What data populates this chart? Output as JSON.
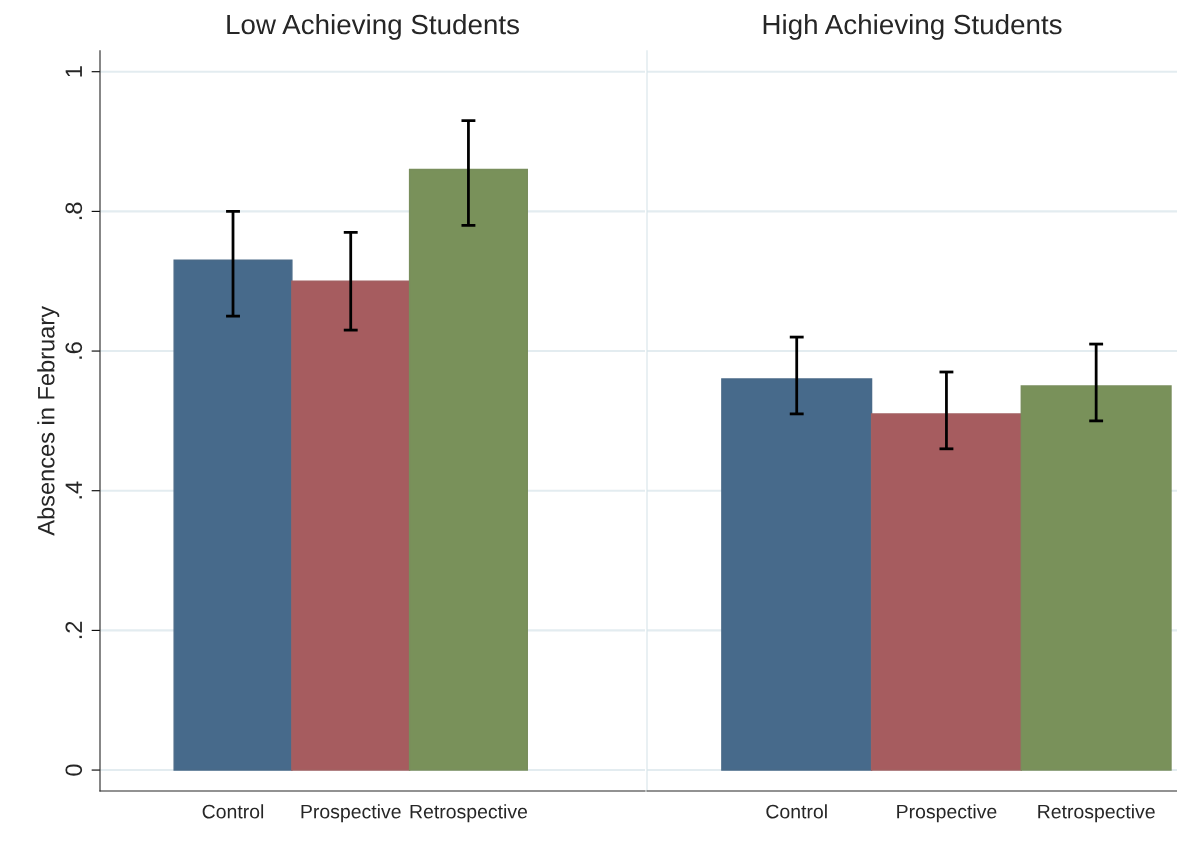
{
  "chart_data": [
    {
      "type": "bar",
      "title": "Low Achieving Students",
      "ylabel": "Absences in February",
      "categories": [
        "Control",
        "Prospective",
        "Retrospective"
      ],
      "values": [
        0.73,
        0.7,
        0.86
      ],
      "colors": [
        "#476a8b",
        "#a65c5f",
        "#79915a"
      ],
      "errors": [
        [
          0.65,
          0.8
        ],
        [
          0.63,
          0.77
        ],
        [
          0.78,
          0.93
        ]
      ],
      "ylim": [
        -0.03,
        1.03
      ],
      "yticks": [
        {
          "value": 0,
          "label": "0"
        },
        {
          "value": 0.2,
          "label": ".2"
        },
        {
          "value": 0.4,
          "label": ".4"
        },
        {
          "value": 0.6,
          "label": ".6"
        },
        {
          "value": 0.8,
          "label": ".8"
        },
        {
          "value": 1,
          "label": "1"
        }
      ],
      "grid": "y"
    },
    {
      "type": "bar",
      "title": "High Achieving Students",
      "categories": [
        "Control",
        "Prospective",
        "Retrospective"
      ],
      "values": [
        0.56,
        0.51,
        0.55
      ],
      "colors": [
        "#476a8b",
        "#a65c5f",
        "#79915a"
      ],
      "errors": [
        [
          0.51,
          0.62
        ],
        [
          0.46,
          0.57
        ],
        [
          0.5,
          0.61
        ]
      ],
      "ylim": [
        -0.03,
        1.03
      ],
      "yticks": [
        {
          "value": 0,
          "label": null
        },
        {
          "value": 0.2,
          "label": null
        },
        {
          "value": 0.4,
          "label": null
        },
        {
          "value": 0.6,
          "label": null
        },
        {
          "value": 0.8,
          "label": null
        },
        {
          "value": 1,
          "label": null
        }
      ],
      "grid": "y",
      "tick_labels": "x"
    }
  ]
}
